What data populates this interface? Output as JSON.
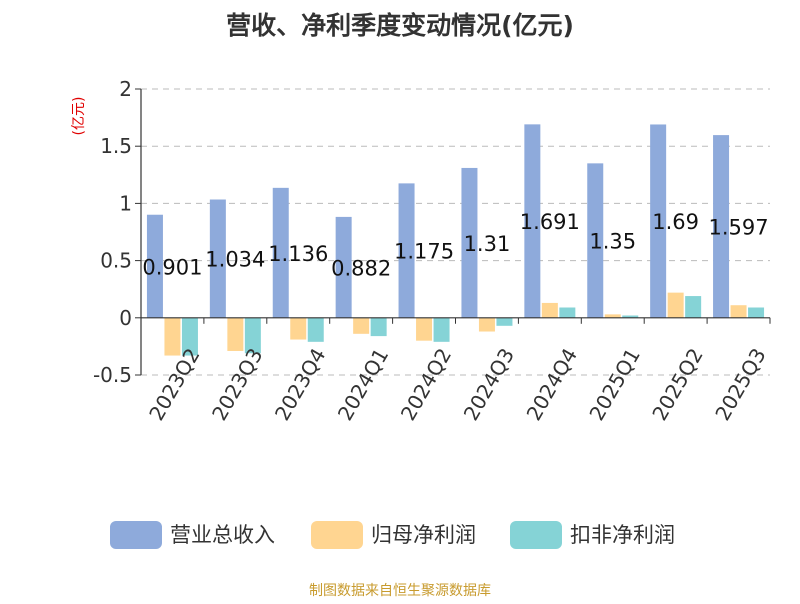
{
  "chart_data": {
    "type": "bar",
    "title": "营收、净利季度变动情况(亿元)",
    "ylabel": "(亿元)",
    "xlabel": "",
    "categories": [
      "2023Q2",
      "2023Q3",
      "2023Q4",
      "2024Q1",
      "2024Q2",
      "2024Q3",
      "2024Q4",
      "2025Q1",
      "2025Q2",
      "2025Q3"
    ],
    "series": [
      {
        "name": "营业总收入",
        "color": "#8eaadb",
        "values": [
          0.901,
          1.034,
          1.136,
          0.882,
          1.175,
          1.31,
          1.691,
          1.35,
          1.69,
          1.597
        ],
        "labels": [
          "0.901",
          "1.034",
          "1.136",
          "0.882",
          "1.175",
          "1.31",
          "1.691",
          "1.35",
          "1.69",
          "1.597"
        ]
      },
      {
        "name": "归母净利润",
        "color": "#ffd591",
        "values": [
          -0.33,
          -0.29,
          -0.19,
          -0.14,
          -0.2,
          -0.12,
          0.13,
          0.03,
          0.22,
          0.11
        ]
      },
      {
        "name": "扣非净利润",
        "color": "#85d3d6",
        "values": [
          -0.33,
          -0.31,
          -0.21,
          -0.16,
          -0.21,
          -0.07,
          0.09,
          0.02,
          0.19,
          0.09
        ]
      }
    ],
    "ylim": [
      -0.5,
      2
    ],
    "yticks": [
      -0.5,
      0,
      0.5,
      1,
      1.5,
      2
    ],
    "ytick_labels": [
      "-0.5",
      "0",
      "0.5",
      "1",
      "1.5",
      "2"
    ],
    "grid": true,
    "legend": "bottom"
  },
  "source": "制图数据来自恒生聚源数据库"
}
